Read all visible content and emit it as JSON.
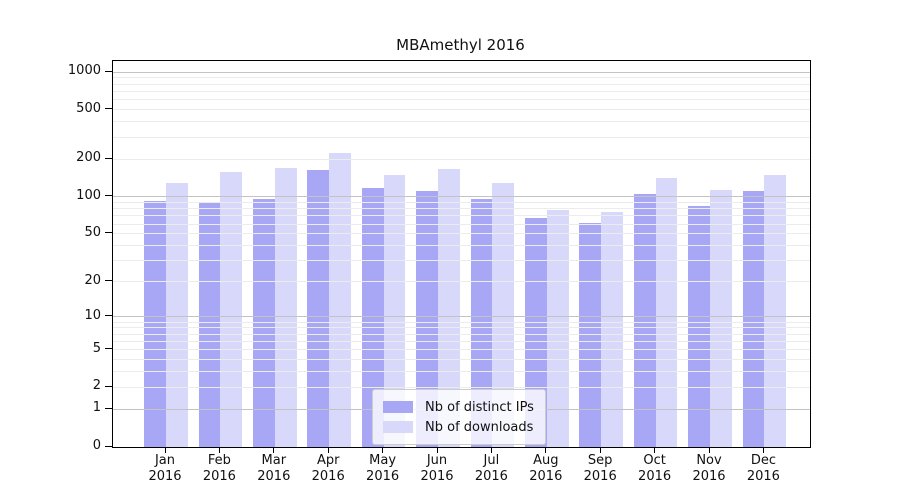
{
  "chart_data": {
    "type": "bar",
    "title": "MBAmethyl 2016",
    "categories": [
      "Jan",
      "Feb",
      "Mar",
      "Apr",
      "May",
      "Jun",
      "Jul",
      "Aug",
      "Sep",
      "Oct",
      "Nov",
      "Dec"
    ],
    "year_label": "2016",
    "series": [
      {
        "name": "Nb of distinct IPs",
        "color": "#a7a7f5",
        "values": [
          93,
          90,
          96,
          163,
          117,
          111,
          95,
          67,
          61,
          106,
          84,
          112
        ]
      },
      {
        "name": "Nb of downloads",
        "color": "#d8d8fa",
        "values": [
          130,
          159,
          169,
          225,
          149,
          167,
          130,
          78,
          75,
          142,
          114,
          151
        ]
      }
    ],
    "xlabel": "",
    "ylabel": "",
    "y_scale": "log10(1+x)",
    "ylim": [
      0,
      1230
    ],
    "y_ticks": [
      0,
      1,
      2,
      5,
      10,
      20,
      50,
      100,
      200,
      500,
      1000
    ],
    "grid": {
      "major": [
        1,
        10,
        100,
        1000
      ],
      "minor_subs": [
        2,
        3,
        4,
        5,
        6,
        7,
        8,
        9
      ],
      "minor_decades": [
        1,
        10,
        100
      ]
    },
    "legend_position": "lower center"
  },
  "colors": {
    "axis": "#000000",
    "grid_major": "#c3c3c3",
    "grid_minor": "#ececec",
    "background": "#ffffff"
  }
}
